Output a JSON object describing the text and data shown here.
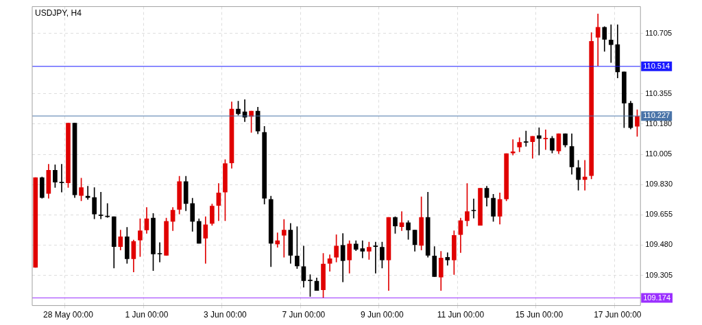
{
  "chart_data": {
    "type": "candlestick",
    "title": "USDJPY, H4",
    "categories": [
      null,
      null,
      null,
      null,
      null,
      "28 May 00:00",
      null,
      null,
      null,
      null,
      null,
      null,
      null,
      null,
      null,
      null,
      null,
      "1 Jun 00:00",
      null,
      null,
      null,
      null,
      null,
      null,
      null,
      null,
      null,
      null,
      null,
      "3 Jun 00:00",
      null,
      null,
      null,
      null,
      null,
      null,
      null,
      null,
      null,
      null,
      null,
      "7 Jun 00:00",
      null,
      null,
      null,
      null,
      null,
      null,
      null,
      null,
      null,
      null,
      null,
      "9 Jun 00:00",
      null,
      null,
      null,
      null,
      null,
      null,
      null,
      null,
      null,
      null,
      null,
      "11 Jun 00:00",
      null,
      null,
      null,
      null,
      null,
      null,
      null,
      null,
      null,
      null,
      null,
      "15 Jun 00:00",
      null,
      null,
      null,
      null,
      null,
      null,
      null,
      null,
      null,
      null,
      null,
      "17 Jun 00:00",
      null,
      null,
      null
    ],
    "ohlc": [
      [
        109.351,
        109.87,
        109.351,
        109.87
      ],
      [
        109.87,
        109.874,
        109.751,
        109.755
      ],
      [
        109.778,
        109.947,
        109.751,
        109.913
      ],
      [
        109.913,
        109.944,
        109.813,
        109.844
      ],
      [
        109.84,
        109.947,
        109.786,
        109.84
      ],
      [
        109.84,
        110.186,
        109.813,
        110.186
      ],
      [
        110.186,
        110.186,
        109.755,
        109.771
      ],
      [
        109.767,
        109.867,
        109.736,
        109.813
      ],
      [
        109.763,
        109.82,
        109.744,
        109.755
      ],
      [
        109.755,
        109.813,
        109.632,
        109.659
      ],
      [
        109.651,
        109.786,
        109.632,
        109.651
      ],
      [
        109.647,
        109.72,
        109.64,
        109.644
      ],
      [
        109.644,
        109.644,
        109.347,
        109.471
      ],
      [
        109.471,
        109.567,
        109.451,
        109.528
      ],
      [
        109.528,
        109.582,
        109.374,
        109.401
      ],
      [
        109.401,
        109.509,
        109.324,
        109.501
      ],
      [
        109.509,
        109.632,
        109.413,
        109.563
      ],
      [
        109.567,
        109.697,
        109.547,
        109.632
      ],
      [
        109.636,
        109.663,
        109.332,
        109.428
      ],
      [
        109.428,
        109.494,
        109.382,
        109.428
      ],
      [
        109.42,
        109.636,
        109.42,
        109.617
      ],
      [
        109.617,
        109.697,
        109.563,
        109.682
      ],
      [
        109.686,
        109.878,
        109.659,
        109.847
      ],
      [
        109.847,
        109.878,
        109.678,
        109.72
      ],
      [
        109.72,
        109.751,
        109.559,
        109.617
      ],
      [
        109.617,
        109.632,
        109.49,
        109.49
      ],
      [
        109.52,
        109.644,
        109.374,
        109.597
      ],
      [
        109.605,
        109.717,
        109.594,
        109.705
      ],
      [
        109.709,
        109.836,
        109.621,
        109.782
      ],
      [
        109.786,
        109.974,
        109.621,
        109.951
      ],
      [
        109.955,
        110.309,
        109.924,
        110.267
      ],
      [
        110.267,
        110.313,
        110.232,
        110.24
      ],
      [
        110.251,
        110.321,
        110.194,
        110.22
      ],
      [
        110.224,
        110.255,
        110.132,
        110.255
      ],
      [
        110.255,
        110.278,
        110.124,
        110.14
      ],
      [
        110.132,
        110.167,
        109.717,
        109.751
      ],
      [
        109.744,
        109.763,
        109.355,
        109.49
      ],
      [
        109.486,
        109.551,
        109.467,
        109.505
      ],
      [
        109.536,
        109.628,
        109.409,
        109.567
      ],
      [
        109.567,
        109.605,
        109.374,
        109.42
      ],
      [
        109.417,
        109.586,
        109.344,
        109.359
      ],
      [
        109.355,
        109.474,
        109.236,
        109.274
      ],
      [
        109.274,
        109.309,
        109.182,
        109.274
      ],
      [
        109.271,
        109.29,
        109.217,
        109.217
      ],
      [
        109.221,
        109.432,
        109.175,
        109.37
      ],
      [
        109.374,
        109.424,
        109.328,
        109.401
      ],
      [
        109.409,
        109.54,
        109.382,
        109.474
      ],
      [
        109.478,
        109.547,
        109.267,
        109.39
      ],
      [
        109.394,
        109.505,
        109.317,
        109.486
      ],
      [
        109.486,
        109.505,
        109.447,
        109.455
      ],
      [
        109.459,
        109.505,
        109.405,
        109.444
      ],
      [
        109.444,
        109.497,
        109.397,
        109.467
      ],
      [
        109.471,
        109.497,
        109.317,
        109.471
      ],
      [
        109.467,
        109.497,
        109.347,
        109.394
      ],
      [
        109.394,
        109.64,
        109.217,
        109.64
      ],
      [
        109.64,
        109.644,
        109.547,
        109.59
      ],
      [
        109.586,
        109.674,
        109.563,
        109.609
      ],
      [
        109.609,
        109.621,
        109.513,
        109.567
      ],
      [
        109.567,
        109.567,
        109.444,
        109.482
      ],
      [
        109.478,
        109.759,
        109.451,
        109.64
      ],
      [
        109.64,
        109.786,
        109.409,
        109.42
      ],
      [
        109.417,
        109.471,
        109.297,
        109.297
      ],
      [
        109.294,
        109.444,
        109.217,
        109.405
      ],
      [
        109.409,
        109.436,
        109.363,
        109.394
      ],
      [
        109.394,
        109.563,
        109.309,
        109.536
      ],
      [
        109.54,
        109.636,
        109.436,
        109.621
      ],
      [
        109.621,
        109.836,
        109.59,
        109.674
      ],
      [
        109.678,
        109.747,
        109.636,
        109.678
      ],
      [
        109.594,
        109.809,
        109.594,
        109.809
      ],
      [
        109.809,
        109.82,
        109.705,
        109.755
      ],
      [
        109.751,
        109.774,
        109.617,
        109.647
      ],
      [
        109.647,
        109.782,
        109.601,
        109.744
      ],
      [
        109.747,
        110.009,
        109.736,
        110.009
      ],
      [
        110.013,
        110.09,
        110.001,
        110.02
      ],
      [
        110.047,
        110.101,
        110.02,
        110.074
      ],
      [
        110.074,
        110.14,
        110.051,
        110.074
      ],
      [
        110.078,
        110.109,
        109.982,
        110.109
      ],
      [
        110.113,
        110.159,
        110.001,
        110.097
      ],
      [
        110.094,
        110.147,
        110.032,
        110.097
      ],
      [
        110.097,
        110.109,
        110.013,
        110.028
      ],
      [
        110.024,
        110.124,
        110.009,
        110.124
      ],
      [
        110.124,
        110.124,
        110.047,
        110.059
      ],
      [
        110.051,
        110.124,
        109.89,
        109.932
      ],
      [
        109.928,
        109.97,
        109.797,
        109.859
      ],
      [
        109.859,
        109.97,
        109.797,
        109.874
      ],
      [
        109.882,
        110.709,
        109.863,
        110.659
      ],
      [
        110.682,
        110.817,
        110.517,
        110.74
      ],
      [
        110.74,
        110.744,
        110.601,
        110.67
      ],
      [
        110.667,
        110.755,
        110.536,
        110.64
      ],
      [
        110.64,
        110.755,
        110.447,
        110.482
      ],
      [
        110.482,
        110.482,
        110.159,
        110.301
      ],
      [
        110.301,
        110.313,
        110.151,
        110.159
      ],
      [
        110.167,
        110.263,
        110.109,
        110.224
      ]
    ],
    "colors": [
      "#e00000",
      "#000000",
      "#e00000",
      "#000000",
      "#000000",
      "#e00000",
      "#000000",
      "#e00000",
      "#000000",
      "#000000",
      "#000000",
      "#000000",
      "#000000",
      "#e00000",
      "#000000",
      "#e00000",
      "#e00000",
      "#e00000",
      "#000000",
      "#000000",
      "#e00000",
      "#e00000",
      "#e00000",
      "#000000",
      "#000000",
      "#000000",
      "#e00000",
      "#e00000",
      "#e00000",
      "#e00000",
      "#e00000",
      "#000000",
      "#000000",
      "#e00000",
      "#000000",
      "#000000",
      "#000000",
      "#e00000",
      "#e00000",
      "#000000",
      "#000000",
      "#000000",
      "#000000",
      "#000000",
      "#e00000",
      "#e00000",
      "#e00000",
      "#000000",
      "#e00000",
      "#000000",
      "#000000",
      "#e00000",
      "#000000",
      "#000000",
      "#e00000",
      "#000000",
      "#e00000",
      "#000000",
      "#000000",
      "#e00000",
      "#000000",
      "#000000",
      "#e00000",
      "#000000",
      "#e00000",
      "#e00000",
      "#e00000",
      "#000000",
      "#e00000",
      "#000000",
      "#000000",
      "#e00000",
      "#e00000",
      "#e00000",
      "#e00000",
      "#000000",
      "#e00000",
      "#000000",
      "#e00000",
      "#000000",
      "#e00000",
      "#000000",
      "#000000",
      "#000000",
      "#e00000",
      "#e00000",
      "#e00000",
      "#000000",
      "#000000",
      "#000000",
      "#000000",
      "#000000",
      "#e00000"
    ],
    "ylim": [
      109.13,
      110.86
    ],
    "yticks": [
      109.305,
      {
        "value": 109.48,
        "label": "109.480"
      },
      109.655,
      {
        "value": 109.83,
        "label": "109.830"
      },
      110.005,
      {
        "value": 110.18,
        "label": "110.180"
      },
      110.355,
      110.705
    ],
    "ref_lines": [
      {
        "axis": "y",
        "value": 110.514,
        "label": "110.514",
        "color": "#1a1aff"
      },
      {
        "axis": "y",
        "value": 110.227,
        "label": "110.227",
        "color": "#4a74a8"
      },
      {
        "axis": "y",
        "value": 109.174,
        "label": "109.174",
        "color": "#9b30ff"
      }
    ],
    "grid": true
  }
}
